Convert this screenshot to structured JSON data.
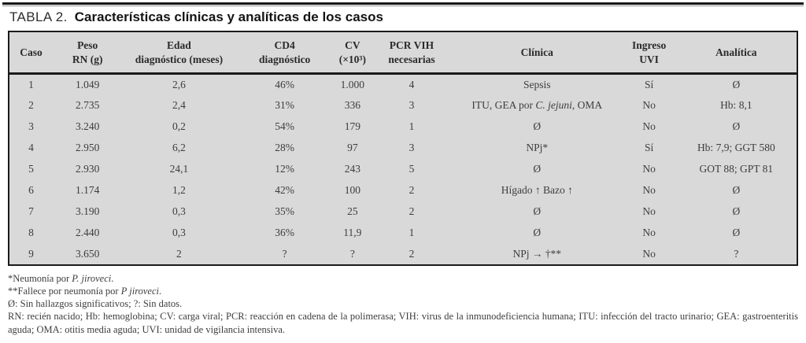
{
  "colors": {
    "table_background": "#d9d9d9",
    "rule": "#1b1b1b",
    "body_text": "#3d3d3d"
  },
  "title": {
    "label": "TABLA 2.",
    "caption": "Características clínicas y analíticas de los casos"
  },
  "table": {
    "headers": [
      {
        "line1": "Caso",
        "line2": ""
      },
      {
        "line1": "Peso",
        "line2": "RN (g)"
      },
      {
        "line1": "Edad",
        "line2": "diagnóstico (meses)"
      },
      {
        "line1": "CD4",
        "line2": "diagnóstico"
      },
      {
        "line1": "CV",
        "line2": "(×10³)"
      },
      {
        "line1": "PCR VIH",
        "line2": "necesarias"
      },
      {
        "line1": "Clínica",
        "line2": ""
      },
      {
        "line1": "Ingreso",
        "line2": "UVI"
      },
      {
        "line1": "Analítica",
        "line2": ""
      }
    ],
    "rows": [
      {
        "caso": "1",
        "peso": "1.049",
        "edad": "2,6",
        "cd4": "46%",
        "cv": "1.000",
        "pcr": "4",
        "clinica": "Sepsis",
        "uvi": "Sí",
        "analitica": "Ø"
      },
      {
        "caso": "2",
        "peso": "2.735",
        "edad": "2,4",
        "cd4": "31%",
        "cv": "336",
        "pcr": "3",
        "clinica_pre": "ITU, GEA por ",
        "clinica_italic": "C. jejuni",
        "clinica_post": ", OMA",
        "uvi": "No",
        "analitica": "Hb: 8,1"
      },
      {
        "caso": "3",
        "peso": "3.240",
        "edad": "0,2",
        "cd4": "54%",
        "cv": "179",
        "pcr": "1",
        "clinica": "Ø",
        "uvi": "No",
        "analitica": "Ø"
      },
      {
        "caso": "4",
        "peso": "2.950",
        "edad": "6,2",
        "cd4": "28%",
        "cv": "97",
        "pcr": "3",
        "clinica": "NPj*",
        "uvi": "Sí",
        "analitica": "Hb: 7,9; GGT 580"
      },
      {
        "caso": "5",
        "peso": "2.930",
        "edad": "24,1",
        "cd4": "12%",
        "cv": "243",
        "pcr": "5",
        "clinica": "Ø",
        "uvi": "No",
        "analitica": "GOT 88; GPT 81"
      },
      {
        "caso": "6",
        "peso": "1.174",
        "edad": "1,2",
        "cd4": "42%",
        "cv": "100",
        "pcr": "2",
        "clinica": "Hígado ↑ Bazo ↑",
        "uvi": "No",
        "analitica": "Ø"
      },
      {
        "caso": "7",
        "peso": "3.190",
        "edad": "0,3",
        "cd4": "35%",
        "cv": "25",
        "pcr": "2",
        "clinica": "Ø",
        "uvi": "No",
        "analitica": "Ø"
      },
      {
        "caso": "8",
        "peso": "2.440",
        "edad": "0,3",
        "cd4": "36%",
        "cv": "11,9",
        "pcr": "1",
        "clinica": "Ø",
        "uvi": "No",
        "analitica": "Ø"
      },
      {
        "caso": "9",
        "peso": "3.650",
        "edad": "2",
        "cd4": "?",
        "cv": "?",
        "pcr": "2",
        "clinica": "NPj → †**",
        "uvi": "No",
        "analitica": "?"
      }
    ]
  },
  "footnotes": {
    "fn1_pre": "*Neumonía por ",
    "fn1_italic": "P. jiroveci",
    "fn1_post": ".",
    "fn2_pre": "**Fallece por neumonía por ",
    "fn2_italic": "P jiroveci",
    "fn2_post": ".",
    "fn3": "Ø: Sin hallazgos significativos; ?: Sin datos.",
    "fn4": "RN: recién nacido; Hb: hemoglobina; CV: carga viral; PCR: reacción en cadena de la polimerasa; VIH: virus de la inmunodeficiencia humana; ITU: infección del tracto urinario; GEA: gastroenteritis aguda; OMA: otitis media aguda; UVI: unidad de vigilancia intensiva."
  }
}
